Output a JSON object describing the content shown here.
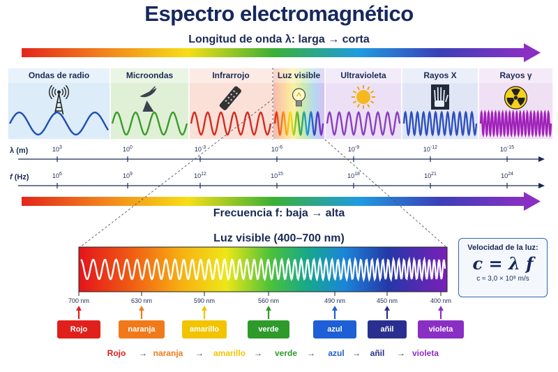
{
  "title": "Espectro electromagnético",
  "top_arrow_label": "Longitud de onda λ: larga → corta",
  "bottom_arrow_label": "Frecuencia f: baja → alta",
  "bands": [
    {
      "label": "Ondas de radio",
      "color": "#dcecf8",
      "wave": "#1f4fb0",
      "icon": "radio-tower-icon"
    },
    {
      "label": "Microondas",
      "color": "#dff0d6",
      "wave": "#3c9a2a",
      "icon": "satellite-dish-icon"
    },
    {
      "label": "Infrarrojo",
      "color": "#fbe0d8",
      "wave": "#d42a1e",
      "icon": "remote-control-icon"
    },
    {
      "label": "Luz visible",
      "color": "#fff6cc",
      "wave": "rainbow",
      "icon": "light-bulb-icon"
    },
    {
      "label": "Ultravioleta",
      "color": "#ece0f6",
      "wave": "#8a3fbf",
      "icon": "sun-icon"
    },
    {
      "label": "Rayos X",
      "color": "#e0e6f6",
      "wave": "#2e4fbf",
      "icon": "xray-hand-icon"
    },
    {
      "label": "Rayos γ",
      "color": "#f0e0f4",
      "wave": "#a021b8",
      "icon": "radiation-icon"
    }
  ],
  "wavelength_axis": {
    "label_symbol": "λ",
    "label_unit": "(m)",
    "ticks": [
      {
        "base": "10",
        "exp": "3"
      },
      {
        "base": "10",
        "exp": "0"
      },
      {
        "base": "10",
        "exp": "-3"
      },
      {
        "base": "10",
        "exp": "-6"
      },
      {
        "base": "10",
        "exp": "-9"
      },
      {
        "base": "10",
        "exp": "-12"
      },
      {
        "base": "10",
        "exp": "-15"
      }
    ]
  },
  "frequency_axis": {
    "label_symbol": "f",
    "label_unit": "(Hz)",
    "ticks": [
      {
        "base": "10",
        "exp": "6"
      },
      {
        "base": "10",
        "exp": "9"
      },
      {
        "base": "10",
        "exp": "12"
      },
      {
        "base": "10",
        "exp": "15"
      },
      {
        "base": "10",
        "exp": "18"
      },
      {
        "base": "10",
        "exp": "21"
      },
      {
        "base": "10",
        "exp": "24"
      }
    ]
  },
  "visible": {
    "title": "Luz visible (400–700 nm)",
    "wavelengths": [
      "700 nm",
      "630 nm",
      "590 nm",
      "560 nm",
      "490 nm",
      "450 nm",
      "400 nm"
    ],
    "colors": [
      {
        "label": "Rojo",
        "hex": "#e0201b"
      },
      {
        "label": "naranja",
        "hex": "#f07a1a"
      },
      {
        "label": "amarillo",
        "hex": "#f2c400"
      },
      {
        "label": "verde",
        "hex": "#2e9a2a"
      },
      {
        "label": "azul",
        "hex": "#1e5fd6"
      },
      {
        "label": "añil",
        "hex": "#2a2f8f"
      },
      {
        "label": "violeta",
        "hex": "#8a2fc4"
      }
    ]
  },
  "formula": {
    "title": "Velocidad de la luz:",
    "equation": "c = λ f",
    "note": "c ≈ 3,0 × 10⁸ m/s"
  },
  "sequence_arrow": "→"
}
